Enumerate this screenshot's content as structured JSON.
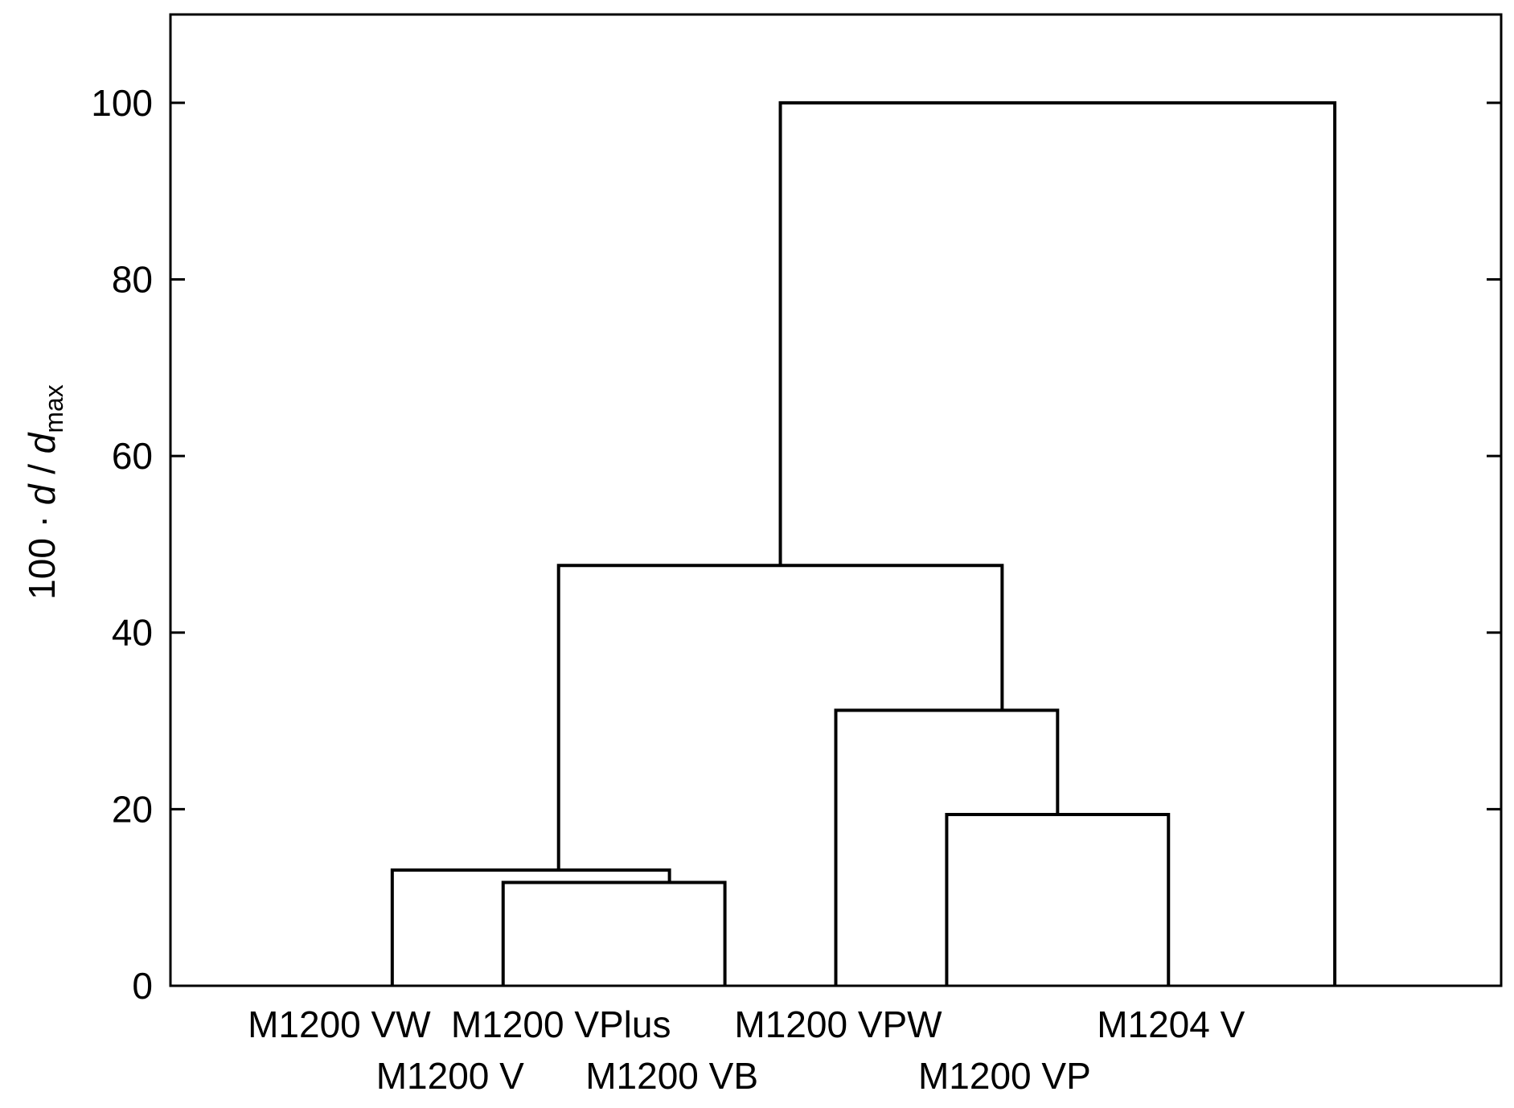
{
  "chart_data": {
    "type": "dendrogram",
    "title": "",
    "xlabel": "",
    "ylabel": {
      "prefix": "100 · ",
      "d1": "d",
      "slash": " / ",
      "d2": "d",
      "sub": "max"
    },
    "ylim": [
      0,
      110
    ],
    "yticks": [
      0,
      20,
      40,
      60,
      80,
      100
    ],
    "grid": false,
    "leaves": [
      {
        "id": "L1",
        "label": "M1200 VW",
        "row": 0
      },
      {
        "id": "L2",
        "label": "M1200 V",
        "row": 1
      },
      {
        "id": "L3",
        "label": "M1200 VPlus",
        "row": 0
      },
      {
        "id": "L4",
        "label": "M1200 VB",
        "row": 1
      },
      {
        "id": "L5",
        "label": "M1200 VPW",
        "row": 0
      },
      {
        "id": "L6",
        "label": "M1200 VP",
        "row": 1
      },
      {
        "id": "L7",
        "label": "M1204 V",
        "row": 0
      }
    ],
    "merges": [
      {
        "id": "C1",
        "left": "L3",
        "right": "L4",
        "height": 11.7
      },
      {
        "id": "C2",
        "left": "L1",
        "right": "C1",
        "height": 13.1
      },
      {
        "id": "C3",
        "left": "L5",
        "right": "L6",
        "height": 19.4
      },
      {
        "id": "C4",
        "left": "L4",
        "right": "C3",
        "height": 31.2
      },
      {
        "id": "C5",
        "left": "C2",
        "right": "C4",
        "height": 47.6
      },
      {
        "id": "C6",
        "left": "C5",
        "right": "L7",
        "height": 100
      }
    ],
    "drawn_links": [
      {
        "name": "merge-vplus-vb",
        "xl": 2,
        "xr": 4,
        "y0l": 0,
        "y0r": 0,
        "h": 11.7
      },
      {
        "name": "merge-vw-group",
        "xl": 1,
        "xr": 3.5,
        "y0l": 0,
        "y0r": 11.7,
        "h": 13.1
      },
      {
        "name": "merge-vpw-vp",
        "xl": 6,
        "xr": 8,
        "y0l": 0,
        "y0r": 0,
        "h": 19.4
      },
      {
        "name": "merge-vb-vpgroup",
        "xl": 5,
        "xr": 7,
        "y0l": 0,
        "y0r": 19.4,
        "h": 31.2
      },
      {
        "name": "merge-left-right",
        "xl": 2.5,
        "xr": 6.5,
        "y0l": 13.1,
        "y0r": 31.2,
        "h": 47.6
      },
      {
        "name": "merge-root",
        "xl": 4.5,
        "xr": 9.5,
        "y0l": 47.6,
        "y0r": 0,
        "h": 100
      }
    ],
    "xlim": [
      -1,
      11
    ]
  }
}
